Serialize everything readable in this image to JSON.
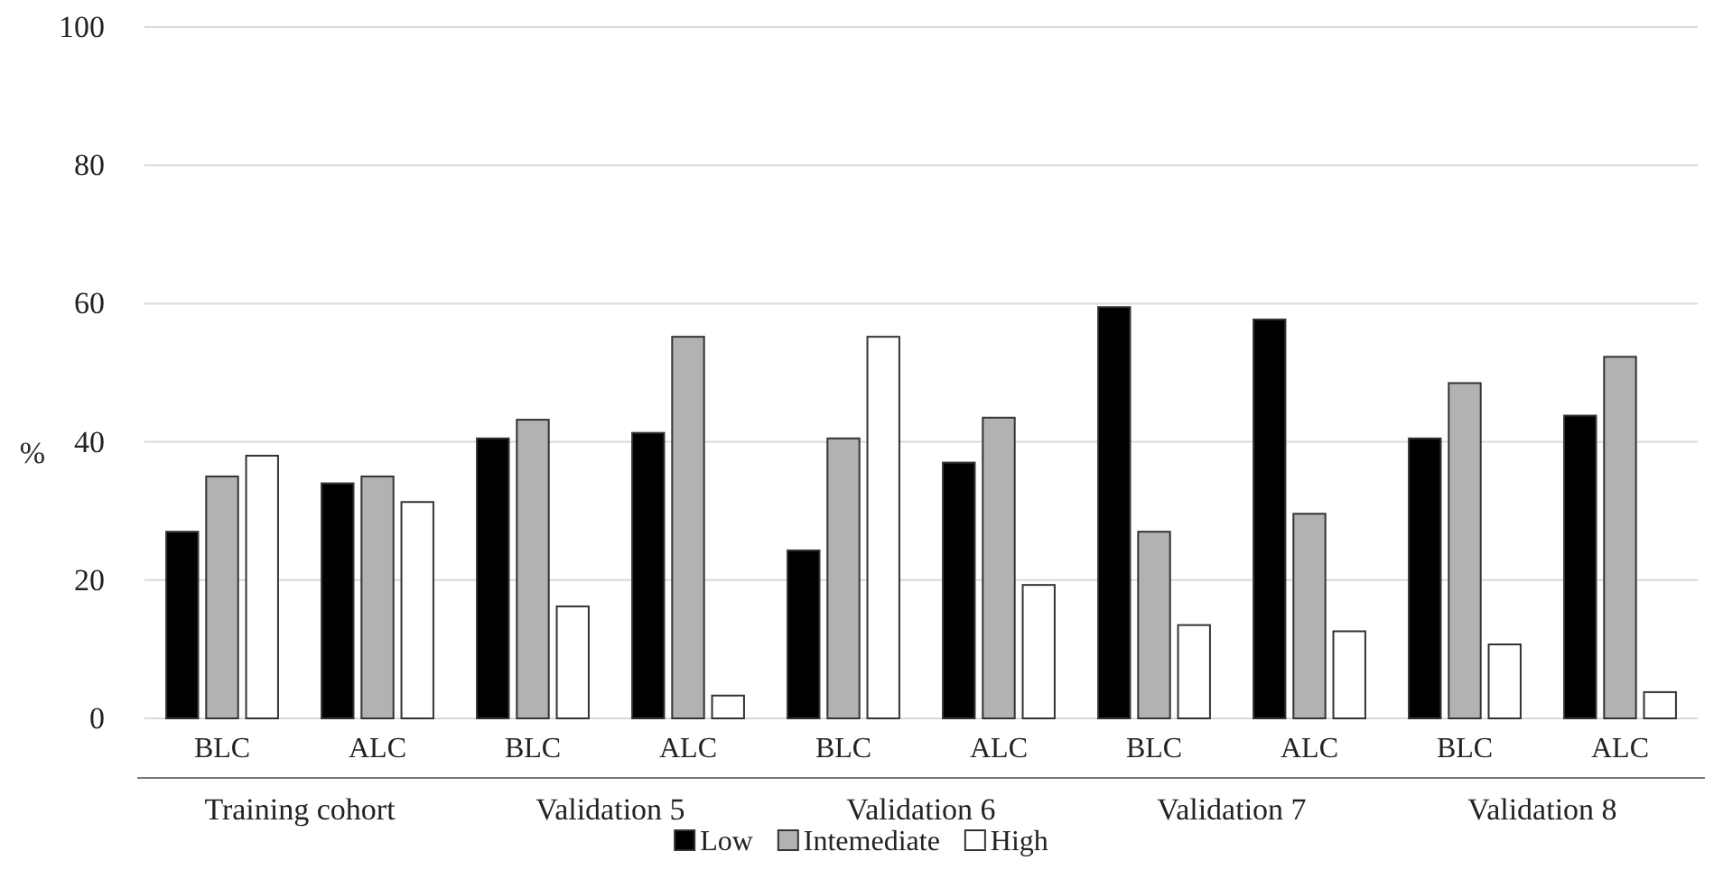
{
  "chart_data": {
    "type": "bar",
    "ylabel": "%",
    "categories": [
      "BLC",
      "ALC",
      "BLC",
      "ALC",
      "BLC",
      "ALC",
      "BLC",
      "ALC",
      "BLC",
      "ALC"
    ],
    "annotations": [
      "Training cohort",
      "Validation 5",
      "Validation 6",
      "Validation 7",
      "Validation 8"
    ],
    "series": [
      {
        "name": "Low",
        "color": "#000000",
        "values": [
          27,
          34,
          40.5,
          41.3,
          24.3,
          37,
          59.5,
          57.7,
          40.5,
          43.8
        ]
      },
      {
        "name": "Intemediate",
        "color": "#b2b2b2",
        "values": [
          35,
          35,
          43.2,
          55.2,
          40.5,
          43.5,
          27,
          29.6,
          48.5,
          52.3
        ]
      },
      {
        "name": "High",
        "color": "#ffffff",
        "values": [
          38,
          31.3,
          16.2,
          3.3,
          55.2,
          19.3,
          13.5,
          12.6,
          10.7,
          3.8
        ]
      }
    ],
    "ylim": [
      0,
      100
    ],
    "yticks": [
      0,
      20,
      40,
      60,
      80,
      100
    ],
    "grid": "y",
    "legend": "bottom"
  }
}
